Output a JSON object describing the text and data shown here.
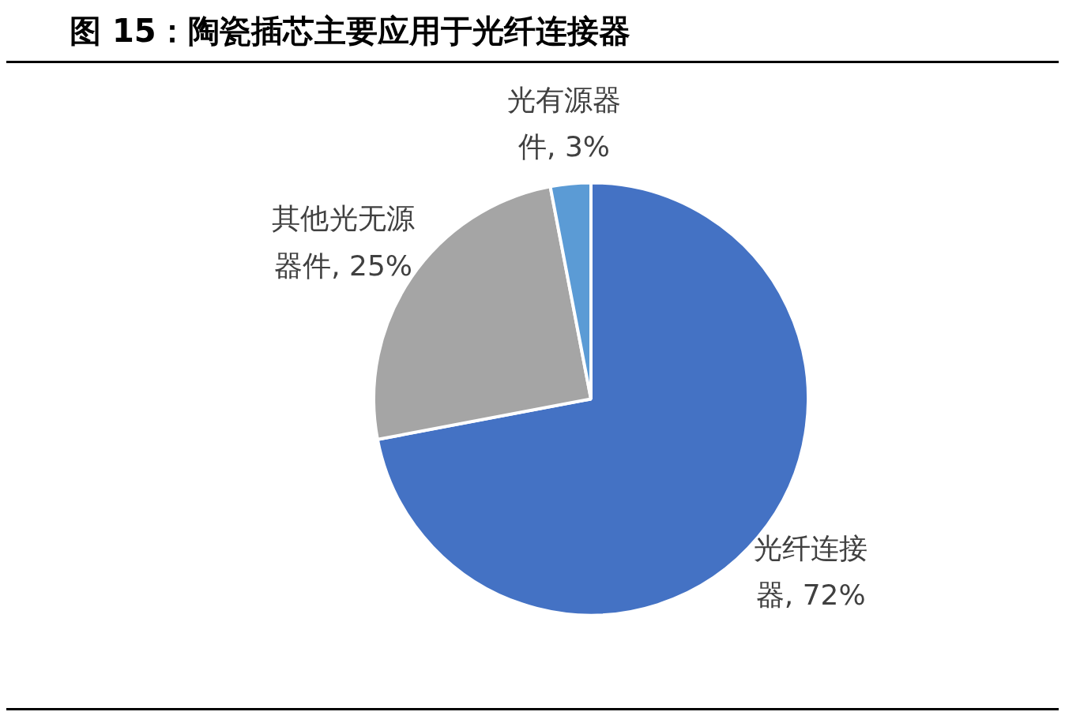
{
  "chart_data": {
    "type": "pie",
    "title": "图 15：陶瓷插芯主要应用于光纤连接器",
    "categories": [
      "光纤连接器",
      "其他光无源器件",
      "光有源器件"
    ],
    "values": [
      72,
      25,
      3
    ],
    "value_labels": [
      "72%",
      "25%",
      "3%"
    ],
    "colors": [
      "#4472c4",
      "#a5a5a5",
      "#5b9bd5"
    ]
  }
}
